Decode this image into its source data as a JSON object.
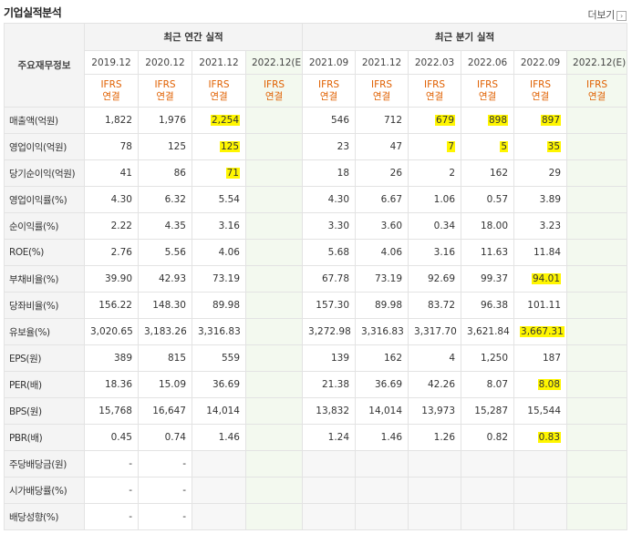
{
  "header": {
    "title": "기업실적분석",
    "more_label": "더보기",
    "more_icon": "right-arrow-icon"
  },
  "groups": {
    "label_col": "주요재무정보",
    "annual": "최근 연간 실적",
    "quarterly": "최근 분기 실적"
  },
  "annual_dates": [
    "2019.12",
    "2020.12",
    "2021.12",
    "2022.12(E)"
  ],
  "quarter_dates": [
    "2021.09",
    "2021.12",
    "2022.03",
    "2022.06",
    "2022.09",
    "2022.12(E)"
  ],
  "ifrs": {
    "line1": "IFRS",
    "line2": "연결"
  },
  "rows": [
    {
      "label": "매출액(억원)",
      "annual": [
        "1,822",
        "1,976",
        "2,254",
        ""
      ],
      "quarterly": [
        "546",
        "712",
        "679",
        "898",
        "897",
        ""
      ]
    },
    {
      "label": "영업이익(억원)",
      "annual": [
        "78",
        "125",
        "125",
        ""
      ],
      "quarterly": [
        "23",
        "47",
        "7",
        "5",
        "35",
        ""
      ]
    },
    {
      "label": "당기순이익(억원)",
      "annual": [
        "41",
        "86",
        "71",
        ""
      ],
      "quarterly": [
        "18",
        "26",
        "2",
        "162",
        "29",
        ""
      ]
    },
    {
      "label": "영업이익률(%)",
      "annual": [
        "4.30",
        "6.32",
        "5.54",
        ""
      ],
      "quarterly": [
        "4.30",
        "6.67",
        "1.06",
        "0.57",
        "3.89",
        ""
      ]
    },
    {
      "label": "순이익률(%)",
      "annual": [
        "2.22",
        "4.35",
        "3.16",
        ""
      ],
      "quarterly": [
        "3.30",
        "3.60",
        "0.34",
        "18.00",
        "3.23",
        ""
      ]
    },
    {
      "label": "ROE(%)",
      "annual": [
        "2.76",
        "5.56",
        "4.06",
        ""
      ],
      "quarterly": [
        "5.68",
        "4.06",
        "3.16",
        "11.63",
        "11.84",
        ""
      ]
    },
    {
      "label": "부채비율(%)",
      "annual": [
        "39.90",
        "42.93",
        "73.19",
        ""
      ],
      "quarterly": [
        "67.78",
        "73.19",
        "92.69",
        "99.37",
        "94.01",
        ""
      ]
    },
    {
      "label": "당좌비율(%)",
      "annual": [
        "156.22",
        "148.30",
        "89.98",
        ""
      ],
      "quarterly": [
        "157.30",
        "89.98",
        "83.72",
        "96.38",
        "101.11",
        ""
      ]
    },
    {
      "label": "유보율(%)",
      "annual": [
        "3,020.65",
        "3,183.26",
        "3,316.83",
        ""
      ],
      "quarterly": [
        "3,272.98",
        "3,316.83",
        "3,317.70",
        "3,621.84",
        "3,667.31",
        ""
      ]
    },
    {
      "label": "EPS(원)",
      "annual": [
        "389",
        "815",
        "559",
        ""
      ],
      "quarterly": [
        "139",
        "162",
        "4",
        "1,250",
        "187",
        ""
      ]
    },
    {
      "label": "PER(배)",
      "annual": [
        "18.36",
        "15.09",
        "36.69",
        ""
      ],
      "quarterly": [
        "21.38",
        "36.69",
        "42.26",
        "8.07",
        "8.08",
        ""
      ]
    },
    {
      "label": "BPS(원)",
      "annual": [
        "15,768",
        "16,647",
        "14,014",
        ""
      ],
      "quarterly": [
        "13,832",
        "14,014",
        "13,973",
        "15,287",
        "15,544",
        ""
      ]
    },
    {
      "label": "PBR(배)",
      "annual": [
        "0.45",
        "0.74",
        "1.46",
        ""
      ],
      "quarterly": [
        "1.24",
        "1.46",
        "1.26",
        "0.82",
        "0.83",
        ""
      ]
    },
    {
      "label": "주당배당금(원)",
      "annual": [
        "-",
        "-",
        "",
        ""
      ],
      "quarterly": [
        "",
        "",
        "",
        "",
        "",
        ""
      ]
    },
    {
      "label": "시가배당률(%)",
      "annual": [
        "-",
        "-",
        "",
        ""
      ],
      "quarterly": [
        "",
        "",
        "",
        "",
        "",
        ""
      ]
    },
    {
      "label": "배당성향(%)",
      "annual": [
        "-",
        "-",
        "",
        ""
      ],
      "quarterly": [
        "",
        "",
        "",
        "",
        "",
        ""
      ]
    }
  ],
  "highlighted_cells": [
    [
      0,
      "annual",
      2
    ],
    [
      0,
      "quarterly",
      2
    ],
    [
      0,
      "quarterly",
      3
    ],
    [
      0,
      "quarterly",
      4
    ],
    [
      1,
      "annual",
      2
    ],
    [
      1,
      "quarterly",
      2
    ],
    [
      1,
      "quarterly",
      3
    ],
    [
      1,
      "quarterly",
      4
    ],
    [
      2,
      "annual",
      2
    ],
    [
      6,
      "quarterly",
      4
    ],
    [
      8,
      "quarterly",
      4
    ],
    [
      10,
      "quarterly",
      4
    ],
    [
      12,
      "quarterly",
      4
    ]
  ],
  "colors": {
    "highlight": "#fff600",
    "estimate_bg": "#f3f9ef",
    "ifrs_text": "#e06000",
    "header_bg": "#f4f4f4"
  }
}
